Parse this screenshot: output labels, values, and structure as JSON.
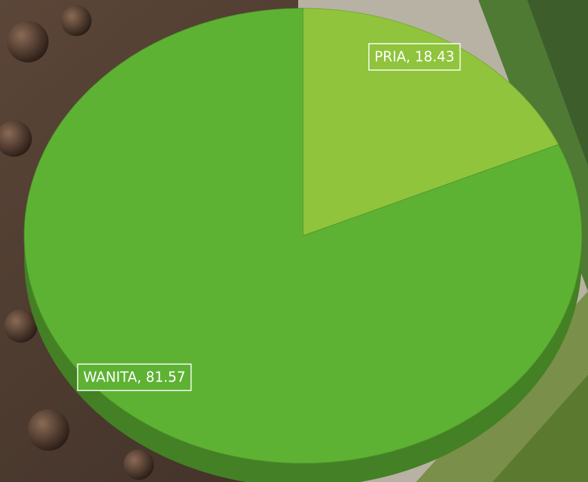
{
  "chart_data": {
    "type": "pie3d",
    "values": [
      18.43,
      81.57
    ],
    "value_labels": [
      "PRIA, 18.43",
      "WANITA, 81.57"
    ],
    "colors": [
      "#8fc43c",
      "#5eb233"
    ],
    "start_angle": 0,
    "direction": "clockwise"
  }
}
